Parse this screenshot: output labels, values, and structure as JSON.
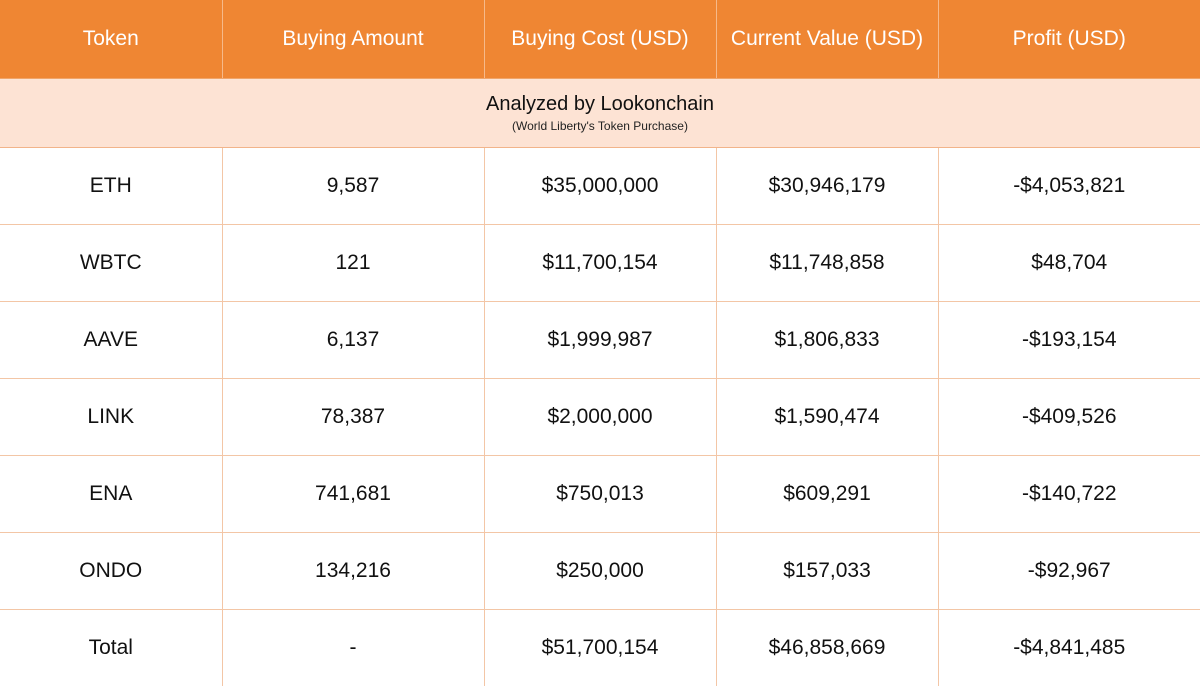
{
  "table": {
    "headers": [
      "Token",
      "Buying Amount",
      "Buying Cost (USD)",
      "Current Value (USD)",
      "Profit (USD)"
    ],
    "subheader": {
      "title": "Analyzed by Lookonchain",
      "note": "(World Liberty's Token Purchase)"
    },
    "rows": [
      {
        "token": "ETH",
        "amount": "9,587",
        "cost": "$35,000,000",
        "value": "$30,946,179",
        "profit": "-$4,053,821"
      },
      {
        "token": "WBTC",
        "amount": "121",
        "cost": "$11,700,154",
        "value": "$11,748,858",
        "profit": "$48,704"
      },
      {
        "token": "AAVE",
        "amount": "6,137",
        "cost": "$1,999,987",
        "value": "$1,806,833",
        "profit": "-$193,154"
      },
      {
        "token": "LINK",
        "amount": "78,387",
        "cost": "$2,000,000",
        "value": "$1,590,474",
        "profit": "-$409,526"
      },
      {
        "token": "ENA",
        "amount": "741,681",
        "cost": "$750,013",
        "value": "$609,291",
        "profit": "-$140,722"
      },
      {
        "token": "ONDO",
        "amount": "134,216",
        "cost": "$250,000",
        "value": "$157,033",
        "profit": "-$92,967"
      },
      {
        "token": "Total",
        "amount": "-",
        "cost": "$51,700,154",
        "value": "$46,858,669",
        "profit": "-$4,841,485"
      }
    ],
    "colors": {
      "header_bg": "#ef8633",
      "subheader_bg": "#fde3d4",
      "negative": "#e8161d",
      "positive": "#111111"
    }
  }
}
